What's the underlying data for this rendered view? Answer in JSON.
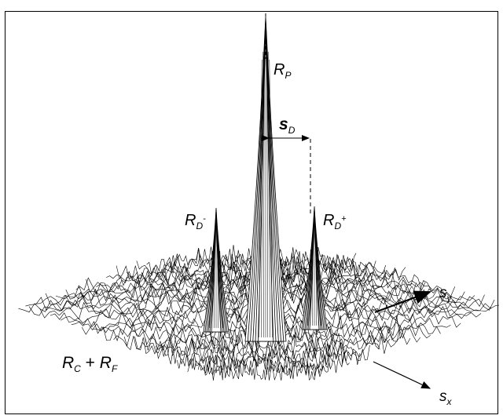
{
  "labels": {
    "rp": {
      "main": "R",
      "sub": "P"
    },
    "sd": {
      "main": "s",
      "sub": "D"
    },
    "rd_minus": {
      "main": "R",
      "sub": "D",
      "sup": "-"
    },
    "rd_plus": {
      "main": "R",
      "sub": "D",
      "sup": "+"
    },
    "rc_rf": {
      "r1": "R",
      "s1": "C",
      "plus": " + ",
      "r2": "R",
      "s2": "F"
    },
    "sy": {
      "main": "s",
      "sub": "y"
    },
    "sx": {
      "main": "s",
      "sub": "x"
    }
  },
  "colors": {
    "ink": "#000000",
    "surface": "#ffffff"
  }
}
